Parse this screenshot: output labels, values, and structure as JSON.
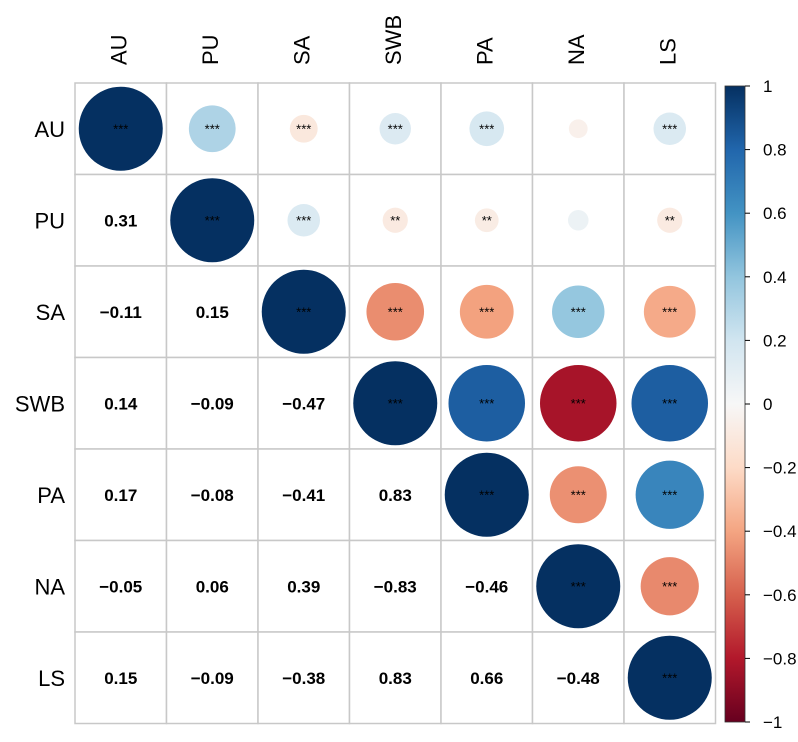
{
  "chart_data": {
    "type": "heatmap",
    "subtype": "correlation-matrix",
    "variables": [
      "AU",
      "PU",
      "SA",
      "SWB",
      "PA",
      "NA",
      "LS"
    ],
    "correlations": [
      [
        1.0,
        0.31,
        -0.11,
        0.14,
        0.17,
        -0.05,
        0.15
      ],
      [
        0.31,
        1.0,
        0.15,
        -0.09,
        -0.08,
        0.06,
        -0.09
      ],
      [
        -0.11,
        0.15,
        1.0,
        -0.47,
        -0.41,
        0.39,
        -0.38
      ],
      [
        0.14,
        -0.09,
        -0.47,
        1.0,
        0.83,
        -0.83,
        0.83
      ],
      [
        0.17,
        -0.08,
        -0.41,
        0.83,
        1.0,
        -0.46,
        0.66
      ],
      [
        -0.05,
        0.06,
        0.39,
        -0.83,
        -0.46,
        1.0,
        -0.48
      ],
      [
        0.15,
        -0.09,
        -0.38,
        0.83,
        0.66,
        -0.48,
        1.0
      ]
    ],
    "lower_triangle_labels": [
      [
        "0.31"
      ],
      [
        "−0.11",
        "0.15"
      ],
      [
        "0.14",
        "−0.09",
        "−0.47"
      ],
      [
        "0.17",
        "−0.08",
        "−0.41",
        "0.83"
      ],
      [
        "−0.05",
        "0.06",
        "0.39",
        "−0.83",
        "−0.46"
      ],
      [
        "0.15",
        "−0.09",
        "−0.38",
        "0.83",
        "0.66",
        "−0.48"
      ]
    ],
    "upper_triangle_significance": [
      [
        "***",
        "***",
        "***",
        "***",
        "***",
        "",
        "***"
      ],
      [
        "***",
        "***",
        "**",
        "**",
        "",
        "**"
      ],
      [
        "***",
        "***",
        "***",
        "***",
        "***"
      ],
      [
        "***",
        "***",
        "***",
        "***"
      ],
      [
        "***",
        "***",
        "***"
      ],
      [
        "***",
        "***"
      ],
      [
        "***"
      ]
    ],
    "colorbar": {
      "range": [
        -1,
        1
      ],
      "ticks": [
        1,
        0.8,
        0.6,
        0.4,
        0.2,
        0,
        -0.2,
        -0.4,
        -0.6,
        -0.8,
        -1
      ],
      "tick_labels": [
        "1",
        "0.8",
        "0.6",
        "0.4",
        "0.2",
        "0",
        "−0.2",
        "−0.4",
        "−0.6",
        "−0.8",
        "−1"
      ],
      "colors_high_to_low": [
        "#053061",
        "#2166AC",
        "#4393C3",
        "#92C5DE",
        "#D1E5F0",
        "#F7F7F7",
        "#FDDBC7",
        "#F4A582",
        "#D6604D",
        "#B2182B",
        "#67001F"
      ]
    }
  }
}
